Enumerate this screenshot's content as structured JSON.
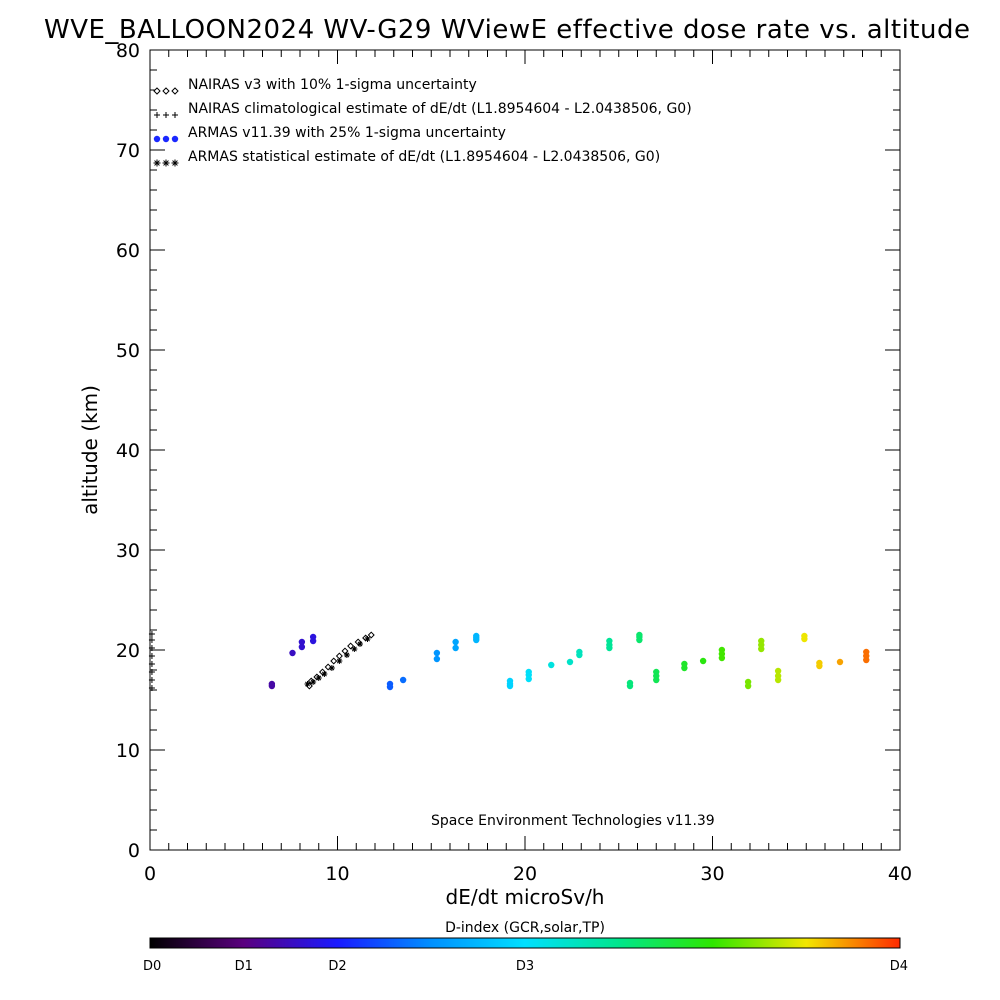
{
  "chart_data": {
    "type": "scatter",
    "title": "WVE_BALLOON2024 WV-G29 WViewE effective dose rate vs. altitude",
    "xlabel": "dE/dt microSv/h",
    "ylabel": "altitude (km)",
    "xlim": [
      0,
      40
    ],
    "ylim": [
      0,
      80
    ],
    "xticks": [
      "0",
      "10",
      "20",
      "30",
      "40"
    ],
    "yticks": [
      "0",
      "10",
      "20",
      "30",
      "40",
      "50",
      "60",
      "70",
      "80"
    ],
    "grid": false,
    "legend_position": "top-left",
    "legend": [
      {
        "symbol": "diamond",
        "label": "NAIRAS v3 with 10% 1-sigma uncertainty"
      },
      {
        "symbol": "plus",
        "label": "NAIRAS climatological estimate of dE/dt (L1.8954604 - L2.0438506, G0)"
      },
      {
        "symbol": "dot",
        "label": "ARMAS v11.39 with 25% 1-sigma uncertainty"
      },
      {
        "symbol": "asterisk",
        "label": "ARMAS statistical estimate of dE/dt (L1.8954604 - L2.0438506, G0)"
      }
    ],
    "annotation": "Space Environment Technologies v11.39",
    "colorbar": {
      "title": "D-index (GCR,solar,TP)",
      "labels": [
        "D0",
        "D1",
        "D2",
        "D3",
        "D4"
      ],
      "label_positions": [
        0,
        0.125,
        0.25,
        0.5,
        1.0
      ]
    },
    "series": [
      {
        "name": "ARMAS v11.39 with 25% 1-sigma uncertainty",
        "color_by": "D-index",
        "points": [
          [
            6.5,
            16.6
          ],
          [
            6.5,
            16.4
          ],
          [
            7.6,
            19.7
          ],
          [
            8.1,
            20.3
          ],
          [
            8.1,
            20.8
          ],
          [
            8.7,
            20.9
          ],
          [
            8.7,
            21.3
          ],
          [
            12.8,
            16.6
          ],
          [
            12.8,
            16.3
          ],
          [
            13.5,
            17.0
          ],
          [
            15.3,
            19.1
          ],
          [
            15.3,
            19.7
          ],
          [
            16.3,
            20.2
          ],
          [
            16.3,
            20.8
          ],
          [
            17.4,
            21.0
          ],
          [
            17.4,
            21.2
          ],
          [
            17.4,
            21.4
          ],
          [
            19.2,
            16.4
          ],
          [
            19.2,
            16.6
          ],
          [
            19.2,
            16.9
          ],
          [
            20.2,
            17.1
          ],
          [
            20.2,
            17.5
          ],
          [
            20.2,
            17.8
          ],
          [
            21.4,
            18.5
          ],
          [
            22.4,
            18.8
          ],
          [
            22.9,
            19.5
          ],
          [
            22.9,
            19.8
          ],
          [
            24.5,
            20.2
          ],
          [
            24.5,
            20.5
          ],
          [
            24.5,
            20.9
          ],
          [
            26.1,
            21.0
          ],
          [
            26.1,
            21.3
          ],
          [
            26.1,
            21.5
          ],
          [
            25.6,
            16.4
          ],
          [
            25.6,
            16.7
          ],
          [
            27.0,
            17.0
          ],
          [
            27.0,
            17.4
          ],
          [
            27.0,
            17.8
          ],
          [
            28.5,
            18.2
          ],
          [
            28.5,
            18.6
          ],
          [
            29.5,
            18.9
          ],
          [
            30.5,
            19.2
          ],
          [
            30.5,
            19.6
          ],
          [
            30.5,
            20.0
          ],
          [
            32.6,
            20.1
          ],
          [
            32.6,
            20.5
          ],
          [
            32.6,
            20.9
          ],
          [
            34.9,
            21.1
          ],
          [
            34.9,
            21.4
          ],
          [
            31.9,
            16.4
          ],
          [
            31.9,
            16.8
          ],
          [
            33.5,
            17.0
          ],
          [
            33.5,
            17.4
          ],
          [
            33.5,
            17.9
          ],
          [
            35.7,
            18.4
          ],
          [
            35.7,
            18.7
          ],
          [
            36.8,
            18.8
          ],
          [
            38.2,
            19.0
          ],
          [
            38.2,
            19.4
          ],
          [
            38.2,
            19.8
          ]
        ]
      },
      {
        "name": "NAIRAS v3 with 10% 1-sigma uncertainty",
        "color": "#000000",
        "points": [
          [
            8.5,
            16.4
          ],
          [
            8.6,
            16.9
          ],
          [
            8.9,
            17.3
          ],
          [
            9.2,
            17.8
          ],
          [
            9.5,
            18.3
          ],
          [
            9.8,
            18.9
          ],
          [
            10.1,
            19.4
          ],
          [
            10.4,
            19.9
          ],
          [
            10.7,
            20.4
          ],
          [
            11.1,
            20.8
          ],
          [
            11.5,
            21.2
          ],
          [
            11.8,
            21.5
          ]
        ]
      },
      {
        "name": "NAIRAS climatological estimate of dE/dt (L1.8954604 - L2.0438506, G0)",
        "color": "#000000",
        "points": [
          [
            0.05,
            16.2
          ],
          [
            0.05,
            17.0
          ],
          [
            0.05,
            17.8
          ],
          [
            0.05,
            18.6
          ],
          [
            0.05,
            19.4
          ],
          [
            0.05,
            20.2
          ],
          [
            0.05,
            21.0
          ],
          [
            0.05,
            21.6
          ]
        ]
      },
      {
        "name": "ARMAS statistical estimate of dE/dt (L1.8954604 - L2.0438506, G0)",
        "color": "#000000",
        "points": [
          [
            8.4,
            16.6
          ],
          [
            8.7,
            16.8
          ],
          [
            9.0,
            17.2
          ],
          [
            9.3,
            17.6
          ],
          [
            9.7,
            18.2
          ],
          [
            10.1,
            18.9
          ],
          [
            10.5,
            19.5
          ],
          [
            10.9,
            20.1
          ],
          [
            11.2,
            20.6
          ],
          [
            11.6,
            21.1
          ]
        ]
      }
    ]
  }
}
